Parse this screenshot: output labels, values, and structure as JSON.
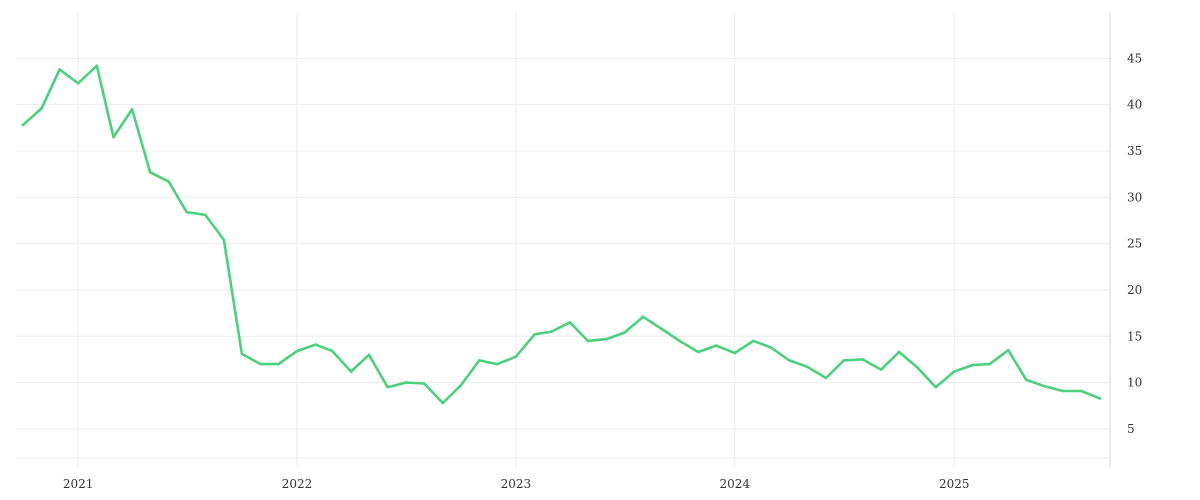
{
  "chart_data": {
    "type": "line",
    "title": "",
    "xlabel": "",
    "ylabel": "",
    "y_axis_position": "right",
    "grid": true,
    "legend": "none",
    "xlim": [
      "2020-10-01",
      "2025-09-01"
    ],
    "ylim": [
      1,
      50
    ],
    "x_ticks": [
      {
        "date": "2021-01-01",
        "label": "2021"
      },
      {
        "date": "2022-01-01",
        "label": "2022"
      },
      {
        "date": "2023-01-01",
        "label": "2023"
      },
      {
        "date": "2024-01-01",
        "label": "2024"
      },
      {
        "date": "2025-01-01",
        "label": "2025"
      }
    ],
    "y_ticks": [
      5,
      10,
      15,
      20,
      25,
      30,
      35,
      40,
      45
    ],
    "series": [
      {
        "color": "#4cd07d",
        "points": [
          [
            "2020-10-01",
            37.8
          ],
          [
            "2020-11-01",
            39.6
          ],
          [
            "2020-12-01",
            43.8
          ],
          [
            "2021-01-01",
            42.3
          ],
          [
            "2021-02-01",
            44.2
          ],
          [
            "2021-03-01",
            36.5
          ],
          [
            "2021-04-01",
            39.5
          ],
          [
            "2021-05-01",
            32.7
          ],
          [
            "2021-06-01",
            31.7
          ],
          [
            "2021-07-01",
            28.4
          ],
          [
            "2021-08-01",
            28.1
          ],
          [
            "2021-09-01",
            25.4
          ],
          [
            "2021-10-01",
            13.1
          ],
          [
            "2021-11-01",
            12.0
          ],
          [
            "2021-12-01",
            12.0
          ],
          [
            "2022-01-01",
            13.4
          ],
          [
            "2022-02-01",
            14.1
          ],
          [
            "2022-03-01",
            13.4
          ],
          [
            "2022-04-01",
            11.2
          ],
          [
            "2022-05-01",
            13.0
          ],
          [
            "2022-06-01",
            9.5
          ],
          [
            "2022-07-01",
            10.0
          ],
          [
            "2022-08-01",
            9.9
          ],
          [
            "2022-09-01",
            7.8
          ],
          [
            "2022-10-01",
            9.7
          ],
          [
            "2022-11-01",
            12.4
          ],
          [
            "2022-12-01",
            12.0
          ],
          [
            "2023-01-01",
            12.8
          ],
          [
            "2023-02-01",
            15.2
          ],
          [
            "2023-03-01",
            15.5
          ],
          [
            "2023-04-01",
            16.5
          ],
          [
            "2023-05-01",
            14.5
          ],
          [
            "2023-06-01",
            14.7
          ],
          [
            "2023-07-01",
            15.4
          ],
          [
            "2023-08-01",
            17.1
          ],
          [
            "2023-09-01",
            15.8
          ],
          [
            "2023-10-01",
            14.5
          ],
          [
            "2023-11-01",
            13.3
          ],
          [
            "2023-12-01",
            14.0
          ],
          [
            "2024-01-01",
            13.2
          ],
          [
            "2024-02-01",
            14.5
          ],
          [
            "2024-03-01",
            13.8
          ],
          [
            "2024-04-01",
            12.4
          ],
          [
            "2024-05-01",
            11.7
          ],
          [
            "2024-06-01",
            10.5
          ],
          [
            "2024-07-01",
            12.4
          ],
          [
            "2024-08-01",
            12.5
          ],
          [
            "2024-09-01",
            11.4
          ],
          [
            "2024-10-01",
            13.3
          ],
          [
            "2024-11-01",
            11.6
          ],
          [
            "2024-12-01",
            9.5
          ],
          [
            "2025-01-01",
            11.2
          ],
          [
            "2025-02-01",
            11.9
          ],
          [
            "2025-03-01",
            12.0
          ],
          [
            "2025-04-01",
            13.5
          ],
          [
            "2025-05-01",
            10.3
          ],
          [
            "2025-06-01",
            9.6
          ],
          [
            "2025-07-01",
            9.1
          ],
          [
            "2025-08-01",
            9.1
          ],
          [
            "2025-09-01",
            8.3
          ]
        ]
      }
    ]
  }
}
